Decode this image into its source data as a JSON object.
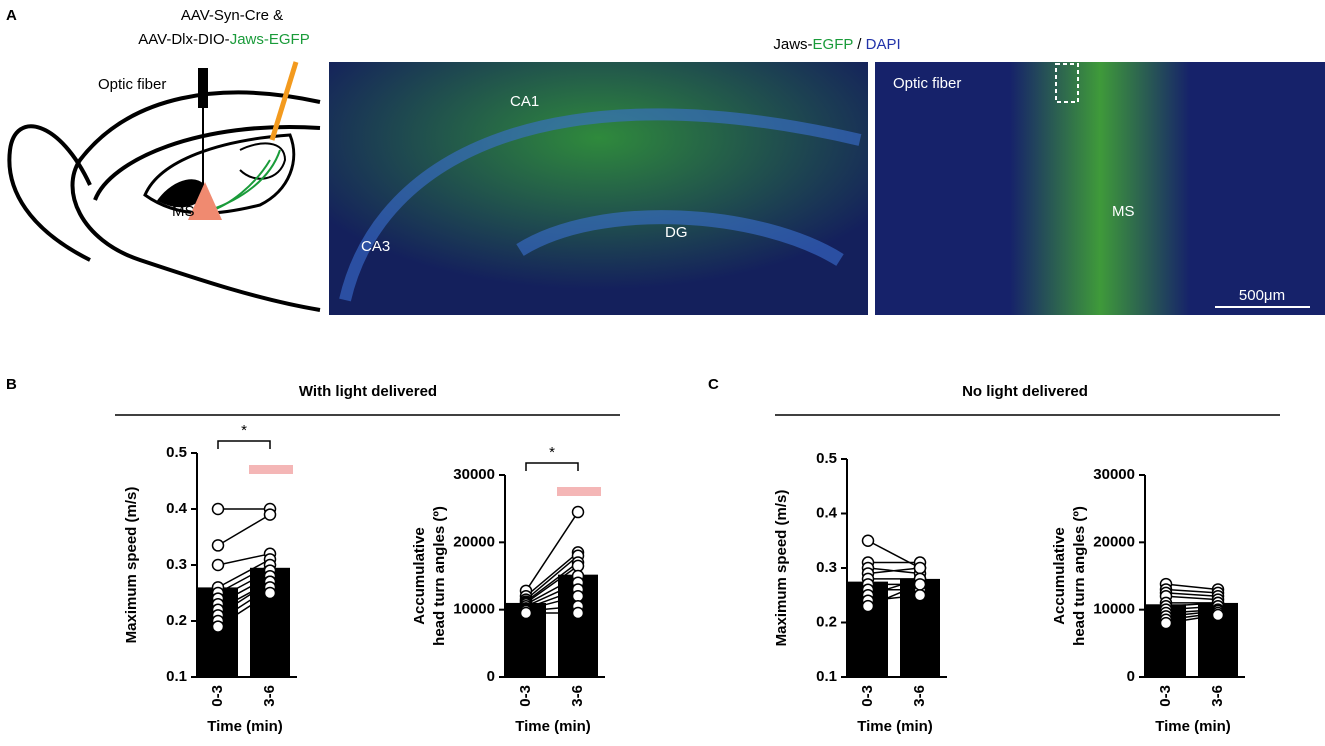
{
  "panel_labels": [
    "A",
    "B",
    "C"
  ],
  "schematic": {
    "injection": [
      "AAV-Syn-Cre &",
      "AAV-Dlx-DIO-",
      "Jaws-EGFP"
    ],
    "fiber": "Optic fiber",
    "region": "MS"
  },
  "images": {
    "title": [
      "Jaws-",
      "EGFP",
      " / ",
      "DAPI"
    ],
    "left": [
      "CA1",
      "CA3",
      "DG"
    ],
    "right": [
      "Optic fiber",
      "MS"
    ],
    "scale": "500μm"
  },
  "sections": [
    "With light delivered",
    "No light delivered"
  ],
  "chart_data": [
    {
      "type": "bar",
      "ylabel": [
        "Maximum speed (m/s)"
      ],
      "xlabel": "Time (min)",
      "categories": [
        "0-3",
        "3-6"
      ],
      "values": [
        0.26,
        0.295
      ],
      "color": "#000000",
      "points": [
        [
          0.4,
          0.335,
          0.3,
          0.26,
          0.25,
          0.24,
          0.23,
          0.22,
          0.21,
          0.2,
          0.19
        ],
        [
          0.4,
          0.39,
          0.32,
          0.31,
          0.3,
          0.29,
          0.28,
          0.27,
          0.27,
          0.26,
          0.25
        ]
      ],
      "ylim": [
        0.1,
        0.5
      ],
      "yticks": [
        0.1,
        0.2,
        0.3,
        0.4,
        0.5
      ],
      "annotation": "*"
    },
    {
      "type": "bar",
      "ylabel": [
        "Accumulative",
        "head turn angles (º)"
      ],
      "xlabel": "Time (min)",
      "categories": [
        "0-3",
        "3-6"
      ],
      "values": [
        11000,
        15200
      ],
      "color": "#000000",
      "points": [
        [
          12800,
          12000,
          11500,
          11200,
          11000,
          10800,
          10500,
          10200,
          10000,
          9800,
          9500
        ],
        [
          24500,
          18500,
          18000,
          17000,
          16500,
          15000,
          14000,
          13000,
          12000,
          10500,
          9500
        ]
      ],
      "ylim": [
        0,
        30000
      ],
      "yticks": [
        0,
        10000,
        20000,
        30000
      ],
      "annotation": "*"
    },
    {
      "type": "bar",
      "ylabel": [
        "Maximum speed (m/s)"
      ],
      "xlabel": "Time (min)",
      "categories": [
        "0-3",
        "3-6"
      ],
      "values": [
        0.275,
        0.28
      ],
      "color": "#000000",
      "points": [
        [
          0.35,
          0.31,
          0.3,
          0.29,
          0.28,
          0.27,
          0.26,
          0.25,
          0.24,
          0.23
        ],
        [
          0.3,
          0.31,
          0.29,
          0.3,
          0.28,
          0.27,
          0.26,
          0.28,
          0.25,
          0.27
        ]
      ],
      "ylim": [
        0.1,
        0.5
      ],
      "yticks": [
        0.1,
        0.2,
        0.3,
        0.4,
        0.5
      ]
    },
    {
      "type": "bar",
      "ylabel": [
        "Accumulative",
        "head turn angles (º)"
      ],
      "xlabel": "Time (min)",
      "categories": [
        "0-3",
        "3-6"
      ],
      "values": [
        10800,
        11000
      ],
      "color": "#000000",
      "points": [
        [
          13800,
          13000,
          12500,
          12000,
          11000,
          10500,
          10000,
          9500,
          9000,
          8500,
          8000
        ],
        [
          13000,
          12500,
          12000,
          11500,
          11000,
          11000,
          10500,
          10000,
          9800,
          9500,
          9200
        ]
      ],
      "ylim": [
        0,
        30000
      ],
      "yticks": [
        0,
        10000,
        20000,
        30000
      ]
    }
  ]
}
